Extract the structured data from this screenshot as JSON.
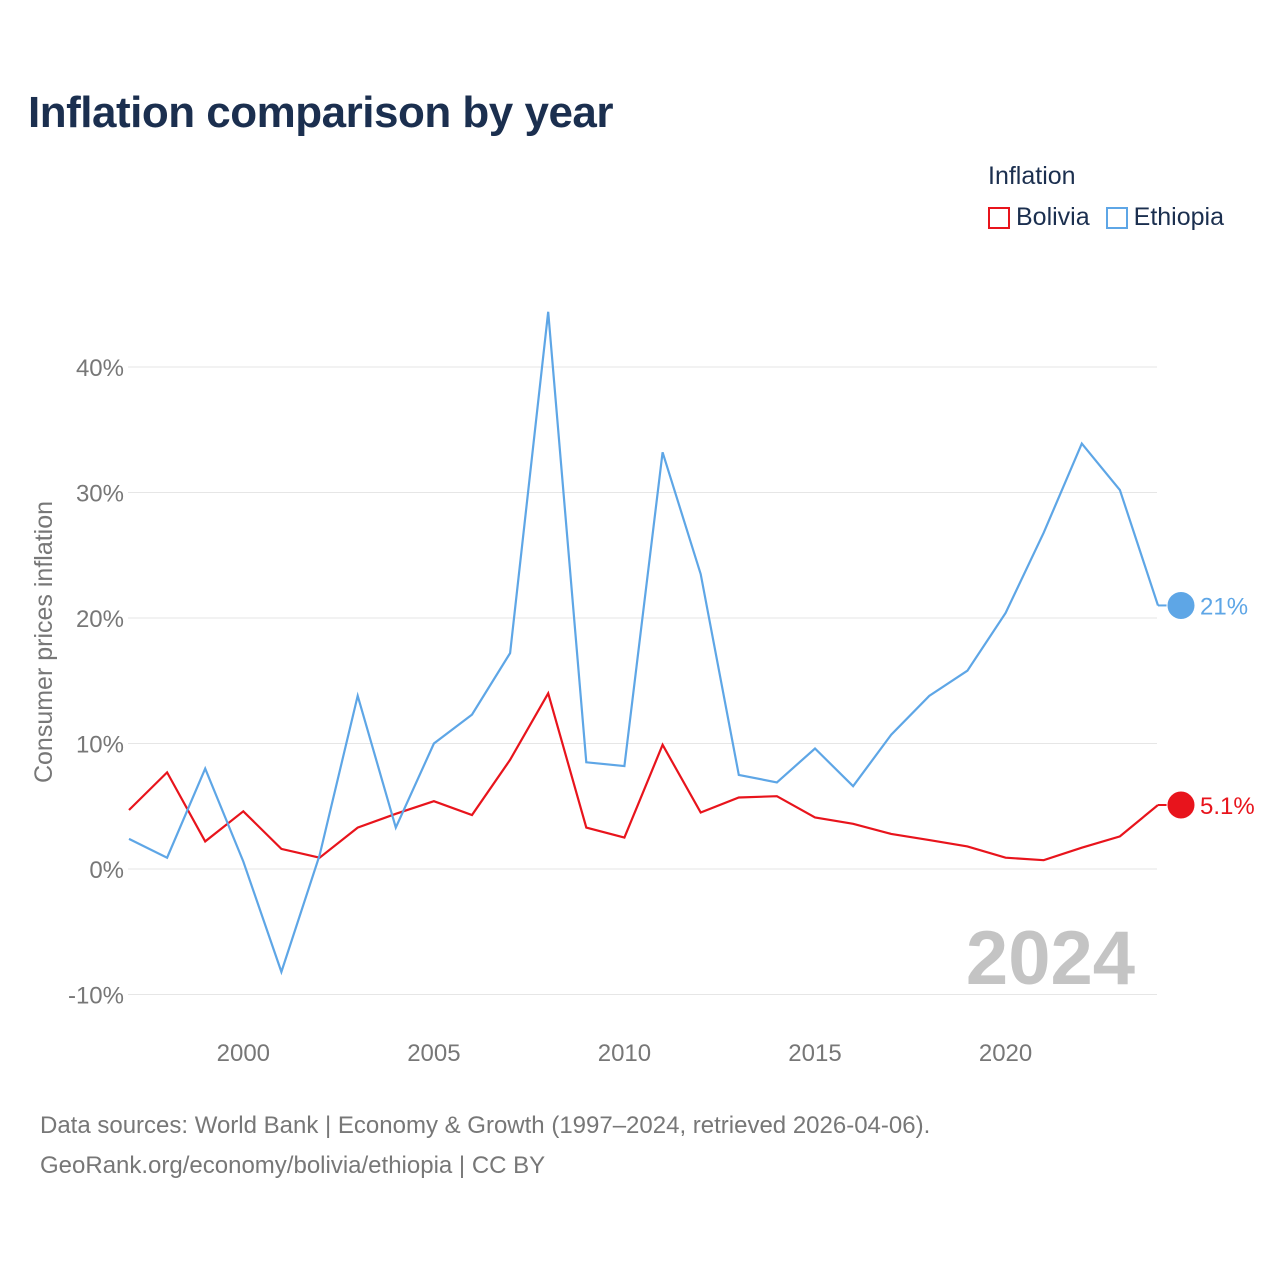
{
  "title": "Inflation comparison by year",
  "legend": {
    "title": "Inflation",
    "items": [
      {
        "name": "Bolivia",
        "color": "#e8141c"
      },
      {
        "name": "Ethiopia",
        "color": "#5ea6e6"
      }
    ]
  },
  "watermark_year": "2024",
  "footer": {
    "line1": "Data sources: World Bank | Economy & Growth (1997–2024, retrieved 2026-04-06).",
    "line2": "GeoRank.org/economy/bolivia/ethiopia | CC BY"
  },
  "chart_data": {
    "type": "line",
    "title": "Inflation comparison by year",
    "xlabel": "",
    "ylabel": "Consumer prices inflation",
    "xlim": [
      1997,
      2024
    ],
    "ylim": [
      -10,
      45
    ],
    "x_ticks": [
      2000,
      2005,
      2010,
      2015,
      2020
    ],
    "y_ticks": [
      -10,
      0,
      10,
      20,
      30,
      40
    ],
    "y_tick_labels": [
      "-10%",
      "0%",
      "10%",
      "20%",
      "30%",
      "40%"
    ],
    "grid": true,
    "x": [
      1997,
      1998,
      1999,
      2000,
      2001,
      2002,
      2003,
      2004,
      2005,
      2006,
      2007,
      2008,
      2009,
      2010,
      2011,
      2012,
      2013,
      2014,
      2015,
      2016,
      2017,
      2018,
      2019,
      2020,
      2021,
      2022,
      2023,
      2024
    ],
    "series": [
      {
        "name": "Bolivia",
        "color": "#e8141c",
        "end_label": "5.1%",
        "values": [
          4.7,
          7.7,
          2.2,
          4.6,
          1.6,
          0.9,
          3.3,
          4.4,
          5.4,
          4.3,
          8.7,
          14.0,
          3.3,
          2.5,
          9.9,
          4.5,
          5.7,
          5.8,
          4.1,
          3.6,
          2.8,
          2.3,
          1.8,
          0.9,
          0.7,
          1.7,
          2.6,
          5.1
        ]
      },
      {
        "name": "Ethiopia",
        "color": "#5ea6e6",
        "end_label": "21%",
        "values": [
          2.4,
          0.9,
          8.0,
          0.6,
          -8.2,
          1.1,
          13.8,
          3.3,
          10.0,
          12.3,
          17.2,
          44.4,
          8.5,
          8.2,
          33.2,
          23.5,
          7.5,
          6.9,
          9.6,
          6.6,
          10.7,
          13.8,
          15.8,
          20.4,
          26.8,
          33.9,
          30.2,
          21.0
        ]
      }
    ]
  }
}
